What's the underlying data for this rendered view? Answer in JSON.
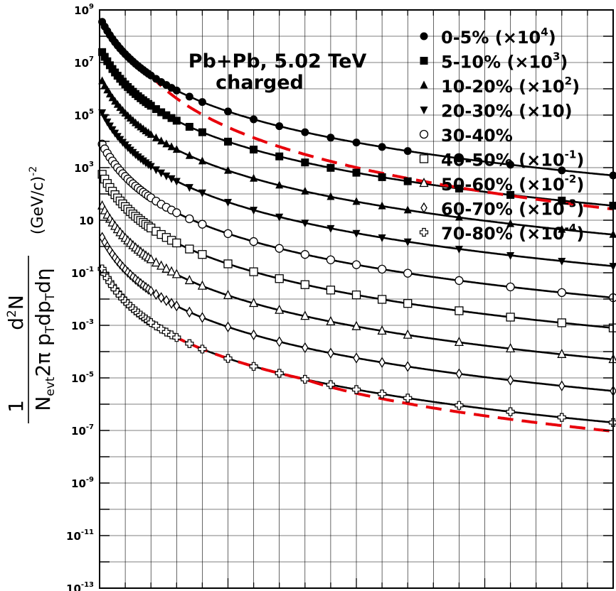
{
  "chart_data": {
    "type": "scatter",
    "title": "",
    "yscale": "log",
    "ylim": [
      1e-13,
      1000000000.0
    ],
    "xlim": [
      0,
      20
    ],
    "x_tick_labels_shown": false,
    "grid": true,
    "legend_position": "top-right",
    "annotation": [
      "Pb+Pb, 5.02 TeV",
      "charged"
    ],
    "ylabel": {
      "numerator": "d²N",
      "denominator": "N_evt 2π p_T dp_T dη",
      "unit": "(GeV/c)⁻²"
    },
    "y_tick_labels": [
      {
        "value": 1000000000.0,
        "base": "10",
        "exp": "9"
      },
      {
        "value": 10000000.0,
        "base": "10",
        "exp": "7"
      },
      {
        "value": 100000.0,
        "base": "10",
        "exp": "5"
      },
      {
        "value": 1000.0,
        "base": "10",
        "exp": "3"
      },
      {
        "value": 10,
        "base": "10",
        "exp": ""
      },
      {
        "value": 0.1,
        "base": "10",
        "exp": "-1"
      },
      {
        "value": 0.001,
        "base": "10",
        "exp": "-3"
      },
      {
        "value": 1e-05,
        "base": "10",
        "exp": "-5"
      },
      {
        "value": 1e-07,
        "base": "10",
        "exp": "-7"
      },
      {
        "value": 1e-09,
        "base": "10",
        "exp": "-9"
      },
      {
        "value": 1e-11,
        "base": "10",
        "exp": "-11"
      },
      {
        "value": 1e-13,
        "base": "10",
        "exp": "-13"
      }
    ],
    "series": [
      {
        "name": "0-5% (×10⁴)",
        "label_main": "0-5% (×10",
        "label_sup": "4",
        "label_end": ")",
        "marker": "circle-filled",
        "log_amplitude": 7.45,
        "fit_log_amplitude": 7.45
      },
      {
        "name": "5-10% (×10³)",
        "label_main": "5-10% (×10",
        "label_sup": "3",
        "label_end": ")",
        "marker": "square-filled",
        "log_amplitude": 6.3,
        "fit_log_amplitude": 6.3
      },
      {
        "name": "10-20% (×10²)",
        "label_main": "10-20% (×10",
        "label_sup": "2",
        "label_end": ")",
        "marker": "triangle-up-filled",
        "log_amplitude": 5.2,
        "fit_log_amplitude": 5.2
      },
      {
        "name": "20-30% (×10)",
        "label_main": "20-30% (×10)",
        "label_sup": "",
        "label_end": "",
        "marker": "triangle-down-filled",
        "log_amplitude": 4.0,
        "fit_log_amplitude": 4.0
      },
      {
        "name": "30-40%",
        "label_main": "30-40%",
        "label_sup": "",
        "label_end": "",
        "marker": "circle-open",
        "log_amplitude": 2.8,
        "fit_log_amplitude": 2.8
      },
      {
        "name": "40-50% (×10⁻¹)",
        "label_main": "40-50% (×10",
        "label_sup": "-1",
        "label_end": ")",
        "marker": "square-open",
        "log_amplitude": 1.65,
        "fit_log_amplitude": 1.65
      },
      {
        "name": "50-60% (×10⁻²)",
        "label_main": "50-60% (×10",
        "label_sup": "-2",
        "label_end": ")",
        "marker": "triangle-up-open",
        "log_amplitude": 0.45,
        "fit_log_amplitude": 0.45
      },
      {
        "name": "60-70% (×10⁻³)",
        "label_main": "60-70% (×10",
        "label_sup": "-3",
        "label_end": ")",
        "marker": "diamond-open",
        "log_amplitude": -0.75,
        "fit_log_amplitude": -0.75
      },
      {
        "name": "70-80% (×10⁻⁴)",
        "label_main": "70-80% (×10",
        "label_sup": "-4",
        "label_end": ")",
        "marker": "cross-open",
        "log_amplitude": -1.95,
        "fit_log_amplitude": -1.95
      }
    ],
    "shape": {
      "a": 0.5,
      "b": 0.25,
      "x0": 0.9,
      "fit_color": "#000000",
      "ref_color": "#e8000b"
    },
    "reference_curves": [
      {
        "series": "0-5% (×10⁴)",
        "style": "dashed",
        "color": "#e8000b",
        "x_range": [
          0.1,
          20
        ],
        "log_amplitude": 7.45,
        "tail_delta": 0.5,
        "tail_start": 2.0
      },
      {
        "series": "70-80% (×10⁻⁴)",
        "style": "dashed",
        "color": "#e8000b",
        "x_range": [
          0.1,
          20
        ],
        "log_amplitude": -1.95,
        "tail_delta": 0.15,
        "tail_start": 8.0
      }
    ],
    "x_points": [
      0.1,
      0.2,
      0.3,
      0.4,
      0.5,
      0.6,
      0.7,
      0.8,
      0.9,
      1.0,
      1.1,
      1.2,
      1.3,
      1.4,
      1.5,
      1.6,
      1.7,
      1.8,
      1.9,
      2.0,
      2.2,
      2.4,
      2.6,
      2.8,
      3.0,
      3.5,
      4.0,
      5.0,
      6.0,
      7.0,
      8.0,
      9.0,
      10.0,
      11.0,
      12.0,
      14.0,
      16.0,
      18.0,
      20.0
    ]
  }
}
